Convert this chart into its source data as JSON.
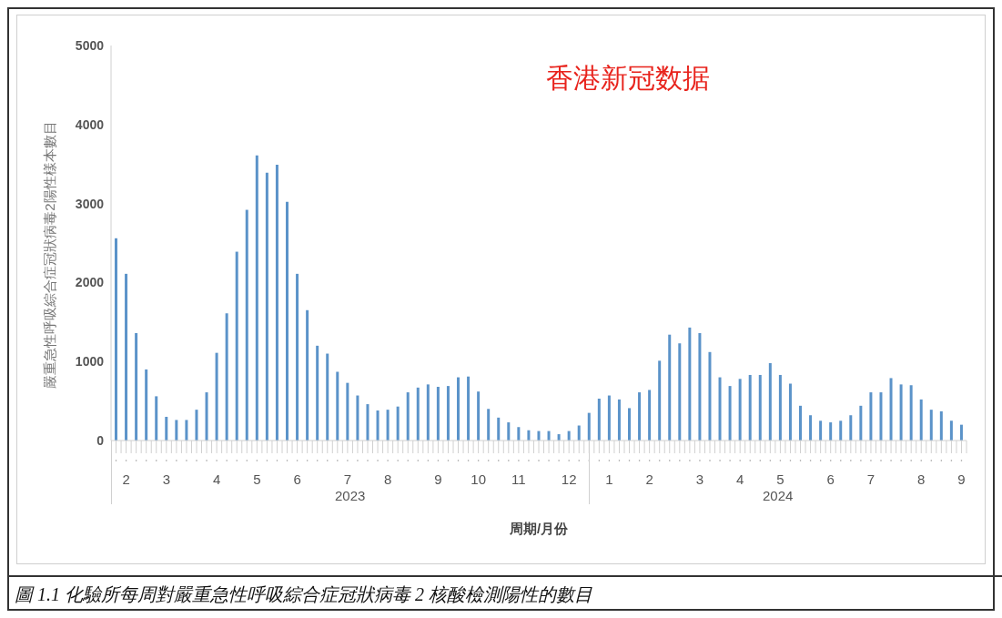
{
  "chart_data": {
    "type": "bar",
    "title": "香港新冠数据",
    "xlabel": "周期/月份",
    "ylabel": "嚴重急性呼吸綜合症冠狀病毒2陽性樣本數目",
    "categories": [
      null,
      "2",
      null,
      null,
      null,
      "3",
      null,
      null,
      null,
      null,
      "4",
      null,
      null,
      null,
      "5",
      null,
      null,
      null,
      "6",
      null,
      null,
      null,
      null,
      "7",
      null,
      null,
      null,
      "8",
      null,
      null,
      null,
      null,
      "9",
      null,
      null,
      null,
      "10",
      null,
      null,
      null,
      "11",
      null,
      null,
      null,
      null,
      "12",
      null,
      null,
      null,
      "1",
      null,
      null,
      null,
      "2",
      null,
      null,
      null,
      null,
      "3",
      null,
      null,
      null,
      "4",
      null,
      null,
      null,
      "5",
      null,
      null,
      null,
      null,
      "6",
      null,
      null,
      null,
      "7",
      null,
      null,
      null,
      null,
      "8",
      null,
      null,
      null,
      "9"
    ],
    "series": [
      {
        "color": "#5b93c9",
        "values": [
          2560,
          2110,
          1360,
          900,
          560,
          300,
          260,
          260,
          390,
          610,
          1110,
          1610,
          2390,
          2920,
          3610,
          3390,
          3490,
          3020,
          2110,
          1650,
          1200,
          1100,
          870,
          730,
          570,
          460,
          380,
          390,
          430,
          610,
          670,
          710,
          680,
          690,
          800,
          810,
          620,
          400,
          290,
          230,
          170,
          130,
          120,
          120,
          80,
          120,
          190,
          350,
          530,
          570,
          520,
          410,
          610,
          640,
          1010,
          1340,
          1230,
          1430,
          1360,
          1120,
          800,
          690,
          780,
          830,
          830,
          980,
          830,
          720,
          440,
          320,
          250,
          230,
          250,
          320,
          440,
          610,
          610,
          790,
          710,
          700,
          520,
          390,
          370,
          250,
          200
        ]
      }
    ],
    "ylim": [
      0,
      5000
    ],
    "yticks": [
      0,
      1000,
      2000,
      3000,
      4000,
      5000
    ],
    "annotations": [
      "圖 1.1 化驗所每周對嚴重急性呼吸綜合症冠狀病毒 2 核酸檢測陽性的數目",
      "2023",
      "2024"
    ]
  }
}
